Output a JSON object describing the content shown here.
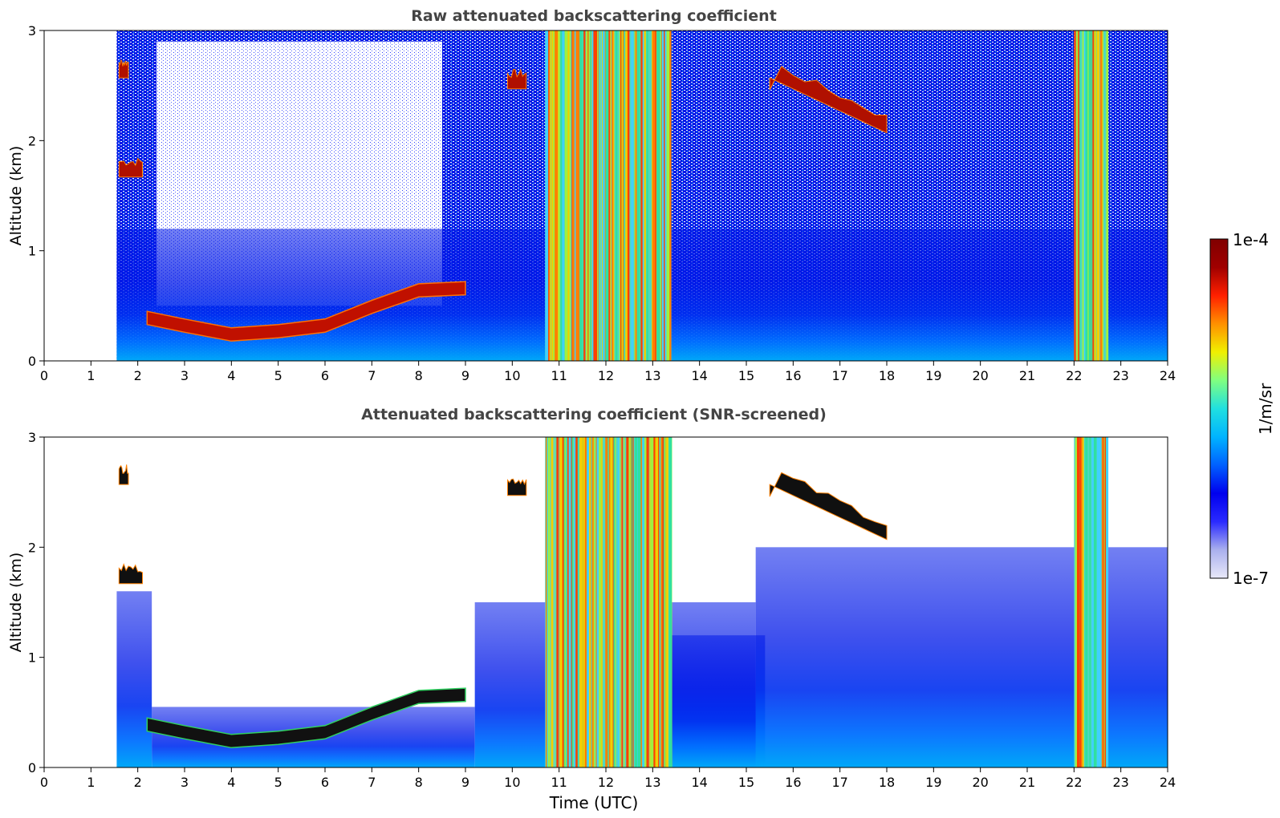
{
  "figure": {
    "xlabel": "Time (UTC)",
    "colorbar": {
      "label": "1/m/sr",
      "max_label": "1e-4",
      "min_label": "1e-7",
      "scale": "log",
      "range": [
        1e-07,
        0.0001
      ],
      "colormap_stops": [
        "#e8e8f8",
        "#aab0ee",
        "#2a2aff",
        "#0000ee",
        "#0060ff",
        "#00b4ff",
        "#20e0e0",
        "#80ff80",
        "#f0f000",
        "#ff9000",
        "#ff2000",
        "#a00000",
        "#800000"
      ]
    }
  },
  "chart_data": [
    {
      "type": "heatmap",
      "title": "Raw attenuated backscattering coefficient",
      "xlabel": "",
      "ylabel": "Altitude (km)",
      "xlim": [
        0,
        24
      ],
      "ylim": [
        0,
        3
      ],
      "xticks": [
        "0",
        "1",
        "2",
        "3",
        "4",
        "5",
        "6",
        "7",
        "8",
        "9",
        "10",
        "11",
        "12",
        "13",
        "14",
        "15",
        "16",
        "17",
        "18",
        "19",
        "20",
        "21",
        "22",
        "23",
        "24"
      ],
      "yticks": [
        "0",
        "1",
        "2",
        "3"
      ],
      "data_start_hour": 1.55,
      "boundary_layer_top_km": [
        [
          2.2,
          0.45
        ],
        [
          3.0,
          0.38
        ],
        [
          4.0,
          0.3
        ],
        [
          5.0,
          0.33
        ],
        [
          6.0,
          0.38
        ],
        [
          7.0,
          0.55
        ],
        [
          8.0,
          0.7
        ],
        [
          9.0,
          0.72
        ]
      ],
      "cloud_layers_km": [
        {
          "start": 1.6,
          "end": 2.1,
          "altitude": 1.75
        },
        {
          "start": 1.6,
          "end": 1.8,
          "altitude": 2.65
        },
        {
          "start": 9.9,
          "end": 10.3,
          "altitude": 2.55
        },
        {
          "start": 15.5,
          "end": 18.0,
          "altitude": 2.4
        }
      ],
      "precipitation_hours": [
        [
          10.7,
          13.4
        ],
        [
          22.0,
          22.7
        ]
      ]
    },
    {
      "type": "heatmap",
      "title": "Attenuated backscattering coefficient (SNR-screened)",
      "xlabel": "Time (UTC)",
      "ylabel": "Altitude (km)",
      "xlim": [
        0,
        24
      ],
      "ylim": [
        0,
        3
      ],
      "xticks": [
        "0",
        "1",
        "2",
        "3",
        "4",
        "5",
        "6",
        "7",
        "8",
        "9",
        "10",
        "11",
        "12",
        "13",
        "14",
        "15",
        "16",
        "17",
        "18",
        "19",
        "20",
        "21",
        "22",
        "23",
        "24"
      ],
      "yticks": [
        "0",
        "1",
        "2",
        "3"
      ],
      "data_start_hour": 1.55,
      "boundary_layer_top_km": [
        [
          2.2,
          0.45
        ],
        [
          3.0,
          0.38
        ],
        [
          4.0,
          0.3
        ],
        [
          5.0,
          0.33
        ],
        [
          6.0,
          0.38
        ],
        [
          7.0,
          0.55
        ],
        [
          8.0,
          0.7
        ],
        [
          9.0,
          0.72
        ]
      ],
      "cloud_layers_km": [
        {
          "start": 1.6,
          "end": 2.1,
          "altitude": 1.75
        },
        {
          "start": 1.6,
          "end": 1.8,
          "altitude": 2.65
        },
        {
          "start": 9.9,
          "end": 10.3,
          "altitude": 2.55
        },
        {
          "start": 15.5,
          "end": 18.0,
          "altitude": 2.4
        }
      ],
      "precipitation_hours": [
        [
          10.7,
          13.4
        ],
        [
          22.0,
          22.7
        ]
      ]
    }
  ]
}
